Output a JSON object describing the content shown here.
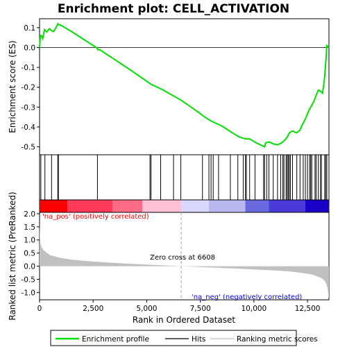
{
  "chart_data": {
    "type": "line",
    "title": "Enrichment plot: CELL_ACTIVATION",
    "n_genes": 13500,
    "zero_cross": 6608,
    "top_panel": {
      "ylabel": "Enrichment score (ES)",
      "ylim": [
        -0.54,
        0.145
      ],
      "yticks": [
        0.1,
        0.0,
        -0.1,
        -0.2,
        -0.3,
        -0.4,
        -0.5
      ],
      "ytick_labels": [
        "0.1",
        "0.0",
        "-0.1",
        "-0.2",
        "-0.3",
        "-0.4",
        "-0.5"
      ],
      "series": [
        {
          "name": "Enrichment profile",
          "color": "#00e000",
          "x": [
            0,
            40,
            90,
            150,
            230,
            330,
            460,
            560,
            650,
            760,
            860,
            900,
            1000,
            1500,
            2000,
            2500,
            2680,
            2720,
            2800,
            3500,
            4200,
            5000,
            5200,
            5700,
            6600,
            7400,
            7700,
            8000,
            8500,
            9000,
            9300,
            9600,
            9800,
            10100,
            10300,
            10500,
            10550,
            10700,
            10900,
            11100,
            11300,
            11450,
            11560,
            11650,
            11800,
            12000,
            12150,
            12250,
            12400,
            12550,
            12700,
            12800,
            12900,
            13000,
            13100,
            13200,
            13280,
            13320,
            13360,
            13400,
            13450,
            13500
          ],
          "y": [
            0.0,
            0.06,
            0.06,
            0.045,
            0.09,
            0.078,
            0.095,
            0.085,
            0.08,
            0.1,
            0.12,
            0.115,
            0.112,
            0.08,
            0.045,
            0.01,
            -0.002,
            -0.012,
            -0.01,
            -0.06,
            -0.11,
            -0.17,
            -0.185,
            -0.21,
            -0.265,
            -0.325,
            -0.35,
            -0.37,
            -0.395,
            -0.43,
            -0.45,
            -0.46,
            -0.46,
            -0.48,
            -0.49,
            -0.5,
            -0.48,
            -0.475,
            -0.485,
            -0.49,
            -0.48,
            -0.465,
            -0.45,
            -0.43,
            -0.42,
            -0.43,
            -0.415,
            -0.39,
            -0.36,
            -0.32,
            -0.29,
            -0.27,
            -0.24,
            -0.215,
            -0.22,
            -0.23,
            -0.17,
            -0.12,
            -0.06,
            0.01,
            0.005,
            0.0
          ]
        }
      ]
    },
    "hits": [
      60,
      250,
      560,
      850,
      880,
      2700,
      5150,
      5200,
      5650,
      6250,
      6590,
      7600,
      7900,
      8000,
      8100,
      8350,
      8900,
      9250,
      9500,
      9600,
      9650,
      9800,
      10050,
      10450,
      10500,
      10600,
      10700,
      10900,
      11100,
      11250,
      11350,
      11400,
      11500,
      11550,
      11600,
      11650,
      11700,
      11800,
      12000,
      12150,
      12300,
      12400,
      12500,
      12600,
      12650,
      12700,
      12850,
      12900,
      13000,
      13100,
      13150,
      13300,
      13350,
      13400
    ],
    "bottom_panel": {
      "ylabel": "Ranked list metric (PreRanked)",
      "ylim": [
        -1.28,
        2.05
      ],
      "yticks": [
        2.0,
        1.5,
        1.0,
        0.5,
        0.0,
        -0.5,
        -1.0
      ],
      "ytick_labels": [
        "2.0",
        "1.5",
        "1.0",
        "0.5",
        "0.0",
        "-0.5",
        "-1.0"
      ],
      "metric": {
        "name": "Ranking metric scores",
        "color": "#c0c0c0",
        "x": [
          0,
          20,
          50,
          100,
          200,
          350,
          500,
          750,
          1000,
          1500,
          2000,
          3000,
          4000,
          5000,
          6000,
          6608,
          7000,
          8000,
          9000,
          10000,
          11000,
          11500,
          12000,
          12500,
          12800,
          13000,
          13200,
          13300,
          13380,
          13430,
          13470,
          13500
        ],
        "y": [
          1.65,
          1.1,
          0.85,
          0.72,
          0.6,
          0.5,
          0.42,
          0.36,
          0.31,
          0.25,
          0.21,
          0.15,
          0.1,
          0.06,
          0.025,
          0.0,
          -0.015,
          -0.05,
          -0.085,
          -0.125,
          -0.165,
          -0.19,
          -0.23,
          -0.29,
          -0.34,
          -0.4,
          -0.48,
          -0.56,
          -0.68,
          -0.82,
          -1.05,
          -1.25
        ]
      },
      "annotations": {
        "pos": "'na_pos' (positively correlated)",
        "neg": "'na_neg' (negatively correlated)",
        "zero": "Zero cross at 6608"
      }
    },
    "xlabel": "Rank in Ordered Dataset",
    "xticks": [
      0,
      2500,
      5000,
      7500,
      10000,
      12500
    ],
    "xtick_labels": [
      "0",
      "2,500",
      "5,000",
      "7,500",
      "10,000",
      "12,500"
    ],
    "legend": {
      "placement": "bottom",
      "items": [
        "Enrichment profile",
        "Hits",
        "Ranking metric scores"
      ]
    },
    "colors": {
      "profile": "#00e000",
      "hits": "#000000",
      "metric": "#c0c0c0",
      "pos_label": "#ff0000",
      "neg_label": "#0000ff",
      "zero_line": "#a0a0a0",
      "pos_strong": "#ff0000",
      "pos_mid": "#ff6a85",
      "pos_light": "#ffc0d8",
      "neutral": "#ffffff",
      "neg_light": "#d8d8ff",
      "neg_mid": "#6a6ae0",
      "neg_strong": "#1a00c8"
    }
  }
}
